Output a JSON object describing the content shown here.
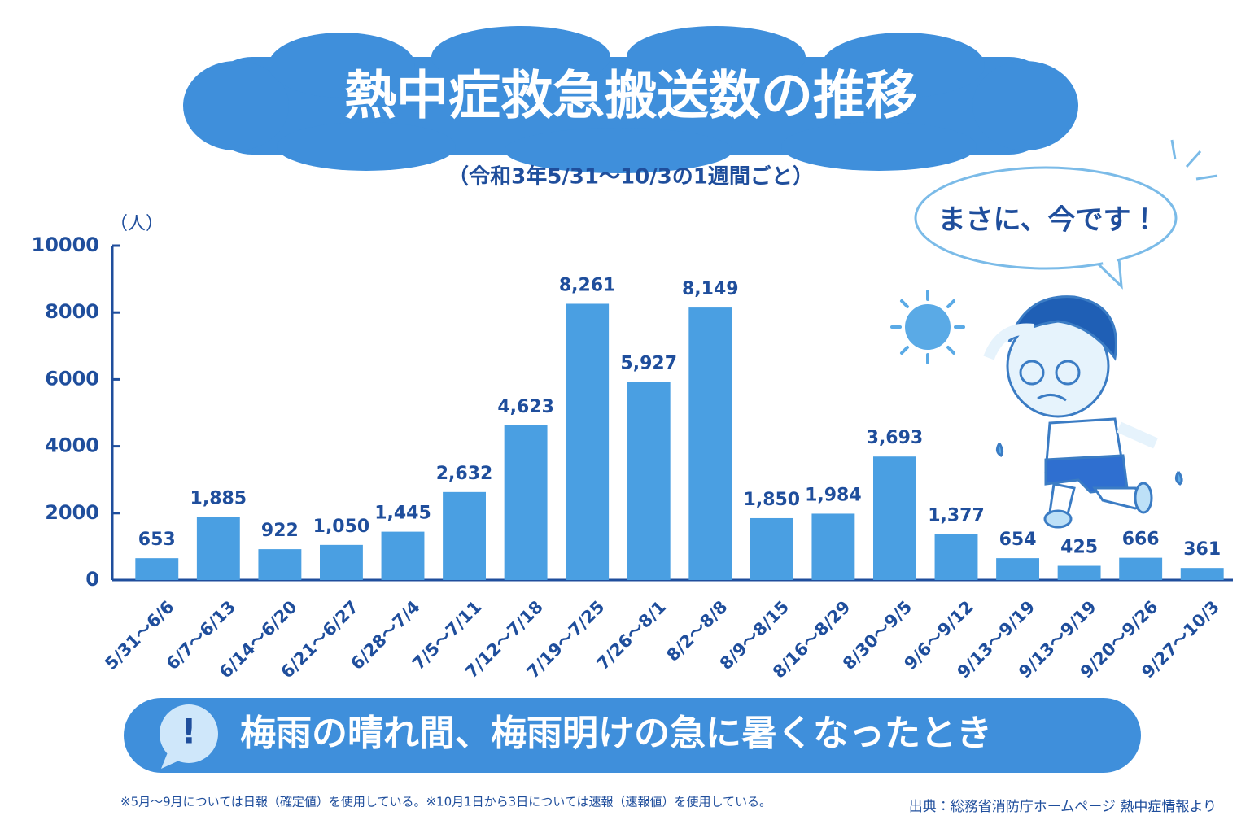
{
  "chart_data": {
    "type": "bar",
    "title": "熱中症救急搬送数の推移",
    "subtitle": "（令和3年5/31～10/3の1週間ごと）",
    "y_unit": "（人）",
    "categories": [
      "5/31～6/6",
      "6/7～6/13",
      "6/14～6/20",
      "6/21～6/27",
      "6/28～7/4",
      "7/5～7/11",
      "7/12～7/18",
      "7/19～7/25",
      "7/26～8/1",
      "8/2～8/8",
      "8/9～8/15",
      "8/16～8/29",
      "8/30～9/5",
      "9/6～9/12",
      "9/13～9/19",
      "9/13～9/19",
      "9/20～9/26",
      "9/27～10/3"
    ],
    "values": [
      653,
      1885,
      922,
      1050,
      1445,
      2632,
      4623,
      8261,
      5927,
      8149,
      1850,
      1984,
      3693,
      1377,
      654,
      425,
      666,
      361
    ],
    "value_labels": [
      "653",
      "1,885",
      "922",
      "1,050",
      "1,445",
      "2,632",
      "4,623",
      "8,261",
      "5,927",
      "8,149",
      "1,850",
      "1,984",
      "3,693",
      "1,377",
      "654",
      "425",
      "666",
      "361"
    ],
    "color": "#4a9fe2",
    "ylim": [
      0,
      10000
    ],
    "yticks": [
      0,
      2000,
      4000,
      6000,
      8000,
      10000
    ],
    "grid": false,
    "speech": "まさに、今です！",
    "banner_icon": "!",
    "banner": "梅雨の晴れ間、梅雨明けの急に暑くなったとき",
    "footnote": "※5月～9月については日報（確定値）を使用している。※10月1日から3日については速報（速報値）を使用している。",
    "source": "出典：総務省消防庁ホームページ 熱中症情報より"
  }
}
